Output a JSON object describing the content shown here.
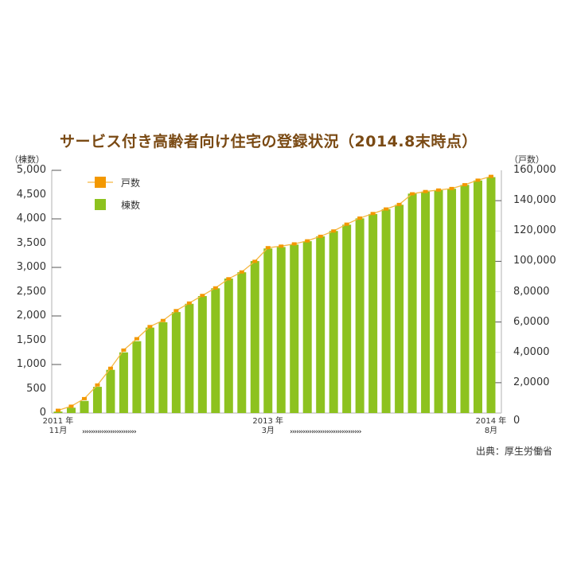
{
  "chart_data": {
    "type": "bar+line",
    "title": "サービス付き高齢者向け住宅の登録状況（2014.8末時点）",
    "source": "出典：厚生労働省",
    "left_axis": {
      "unit": "（棟数）",
      "ticks": [
        "5,000",
        "4,500",
        "4,000",
        "3,500",
        "3,000",
        "2,500",
        "2,000",
        "1,500",
        "1,000",
        "500",
        "0"
      ],
      "range": [
        0,
        5000
      ]
    },
    "right_axis": {
      "unit": "（戸数）",
      "ticks": [
        "160,000",
        "140,000",
        "120,000",
        "100,000",
        "8,0000",
        "6,0000",
        "4,0000",
        "2,0000",
        "0"
      ],
      "range": [
        0,
        160000
      ]
    },
    "x_labels": [
      {
        "index": 0,
        "line1": "2011 年",
        "line2": "11月"
      },
      {
        "index": 16,
        "line1": "2013 年",
        "line2": "3月"
      },
      {
        "index": 33,
        "line1": "2014 年",
        "line2": "8月"
      }
    ],
    "arrows_left": "›››››››››››››››››››››››››",
    "arrows_right": "›››››››››››››››››››››››››››››››››",
    "legend": [
      {
        "label": "戸数",
        "type": "line",
        "color": "#f39800"
      },
      {
        "label": "棟数",
        "type": "bar",
        "color": "#8dc21f"
      }
    ],
    "categories": [
      "2011-11",
      "2011-12",
      "2012-01",
      "2012-02",
      "2012-03",
      "2012-04",
      "2012-05",
      "2012-06",
      "2012-07",
      "2012-08",
      "2012-09",
      "2012-10",
      "2012-11",
      "2012-12",
      "2013-01",
      "2013-02",
      "2013-03",
      "2013-04",
      "2013-05",
      "2013-06",
      "2013-07",
      "2013-08",
      "2013-09",
      "2013-10",
      "2013-11",
      "2013-12",
      "2014-01",
      "2014-02",
      "2014-03",
      "2014-04",
      "2014-05",
      "2014-06",
      "2014-07",
      "2014-08"
    ],
    "series": [
      {
        "name": "棟数",
        "axis": "left",
        "type": "bar",
        "values": [
          30,
          110,
          250,
          540,
          890,
          1250,
          1480,
          1760,
          1870,
          2080,
          2250,
          2410,
          2570,
          2770,
          2900,
          3130,
          3390,
          3420,
          3470,
          3540,
          3640,
          3750,
          3880,
          4010,
          4100,
          4200,
          4290,
          4520,
          4560,
          4590,
          4620,
          4700,
          4790,
          4860
        ]
      },
      {
        "name": "戸数",
        "axis": "right",
        "type": "line",
        "values": [
          1800,
          4500,
          9500,
          18500,
          29500,
          41500,
          49000,
          57000,
          61000,
          67500,
          72500,
          77500,
          82500,
          88500,
          93000,
          100000,
          109000,
          110000,
          111500,
          113500,
          116500,
          120000,
          124500,
          128500,
          131500,
          134500,
          137500,
          144500,
          146000,
          147000,
          148000,
          150500,
          153500,
          156000
        ]
      }
    ]
  },
  "colors": {
    "title": "#7a4a14",
    "bar": "#8dc21f",
    "line": "#f5b842",
    "marker": "#f39800",
    "axis": "#cccccc",
    "tick": "#555555"
  }
}
